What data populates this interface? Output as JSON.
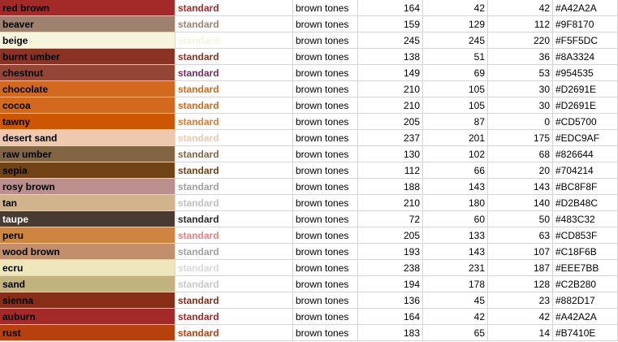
{
  "rows": [
    {
      "name": "red brown",
      "label": "standard",
      "group": "brown tones",
      "r": "164",
      "g": "42",
      "b": "42",
      "hex": "#A42A2A",
      "color": "#A42A2A",
      "name_text_color": "#000000",
      "label_color": "#A42A2A"
    },
    {
      "name": "beaver",
      "label": "standard",
      "group": "brown tones",
      "r": "159",
      "g": "129",
      "b": "112",
      "hex": "#9F8170",
      "color": "#9F8170",
      "name_text_color": "#000000",
      "label_color": "#9F8170"
    },
    {
      "name": "beige",
      "label": "standard",
      "group": "brown tones",
      "r": "245",
      "g": "245",
      "b": "220",
      "hex": "#F5F5DC",
      "color": "#F5F5DC",
      "name_text_color": "#000000",
      "label_color": "#F5F5DC"
    },
    {
      "name": "burnt umber",
      "label": "standard",
      "group": "brown tones",
      "r": "138",
      "g": "51",
      "b": "36",
      "hex": "#8A3324",
      "color": "#8A3324",
      "name_text_color": "#000000",
      "label_color": "#8A3324"
    },
    {
      "name": "chestnut",
      "label": "standard",
      "group": "brown tones",
      "r": "149",
      "g": "69",
      "b": "53",
      "hex": "#954535",
      "color": "#954535",
      "name_text_color": "#000000",
      "label_color": "#7A2E5A"
    },
    {
      "name": "chocolate",
      "label": "standard",
      "group": "brown tones",
      "r": "210",
      "g": "105",
      "b": "30",
      "hex": "#D2691E",
      "color": "#D2691E",
      "name_text_color": "#000000",
      "label_color": "#D2691E"
    },
    {
      "name": "cocoa",
      "label": "standard",
      "group": "brown tones",
      "r": "210",
      "g": "105",
      "b": "30",
      "hex": "#D2691E",
      "color": "#D2691E",
      "name_text_color": "#000000",
      "label_color": "#D2691E"
    },
    {
      "name": "tawny",
      "label": "standard",
      "group": "brown tones",
      "r": "205",
      "g": "87",
      "b": "0",
      "hex": "#CD5700",
      "color": "#CD5700",
      "name_text_color": "#000000",
      "label_color": "#E07A30"
    },
    {
      "name": "desert sand",
      "label": "standard",
      "group": "brown tones",
      "r": "237",
      "g": "201",
      "b": "175",
      "hex": "#EDC9AF",
      "color": "#EDC9AF",
      "name_text_color": "#000000",
      "label_color": "#EDC9AF"
    },
    {
      "name": "raw umber",
      "label": "standard",
      "group": "brown tones",
      "r": "130",
      "g": "102",
      "b": "68",
      "hex": "#826644",
      "color": "#826644",
      "name_text_color": "#000000",
      "label_color": "#826644"
    },
    {
      "name": "sepia",
      "label": "standard",
      "group": "brown tones",
      "r": "112",
      "g": "66",
      "b": "20",
      "hex": "#704214",
      "color": "#704214",
      "name_text_color": "#000000",
      "label_color": "#704214"
    },
    {
      "name": "rosy brown",
      "label": "standard",
      "group": "brown tones",
      "r": "188",
      "g": "143",
      "b": "143",
      "hex": "#BC8F8F",
      "color": "#BC8F8F",
      "name_text_color": "#000000",
      "label_color": "#A0A0A0"
    },
    {
      "name": "tan",
      "label": "standard",
      "group": "brown tones",
      "r": "210",
      "g": "180",
      "b": "140",
      "hex": "#D2B48C",
      "color": "#D2B48C",
      "name_text_color": "#000000",
      "label_color": "#C0C0C0"
    },
    {
      "name": "taupe",
      "label": "standard",
      "group": "brown tones",
      "r": "72",
      "g": "60",
      "b": "50",
      "hex": "#483C32",
      "color": "#483C32",
      "name_text_color": "#ffffff",
      "label_color": "#2b2b2b"
    },
    {
      "name": "peru",
      "label": "standard",
      "group": "brown tones",
      "r": "205",
      "g": "133",
      "b": "63",
      "hex": "#CD853F",
      "color": "#CD853F",
      "name_text_color": "#000000",
      "label_color": "#F08080"
    },
    {
      "name": "wood brown",
      "label": "standard",
      "group": "brown tones",
      "r": "193",
      "g": "143",
      "b": "107",
      "hex": "#C18F6B",
      "color": "#C18F6B",
      "name_text_color": "#000000",
      "label_color": "#A0A0A0"
    },
    {
      "name": "ecru",
      "label": "standard",
      "group": "brown tones",
      "r": "238",
      "g": "231",
      "b": "187",
      "hex": "#EEE7BB",
      "color": "#EEE7BB",
      "name_text_color": "#000000",
      "label_color": "#D8D8D8"
    },
    {
      "name": "sand",
      "label": "standard",
      "group": "brown tones",
      "r": "194",
      "g": "178",
      "b": "128",
      "hex": "#C2B280",
      "color": "#C2B280",
      "name_text_color": "#000000",
      "label_color": "#C8C8C8"
    },
    {
      "name": "sienna",
      "label": "standard",
      "group": "brown tones",
      "r": "136",
      "g": "45",
      "b": "23",
      "hex": "#882D17",
      "color": "#882D17",
      "name_text_color": "#000000",
      "label_color": "#882D17"
    },
    {
      "name": "auburn",
      "label": "standard",
      "group": "brown tones",
      "r": "164",
      "g": "42",
      "b": "42",
      "hex": "#A42A2A",
      "color": "#A42A2A",
      "name_text_color": "#000000",
      "label_color": "#A42A2A"
    },
    {
      "name": "rust",
      "label": "standard",
      "group": "brown tones",
      "r": "183",
      "g": "65",
      "b": "14",
      "hex": "#B7410E",
      "color": "#B7410E",
      "name_text_color": "#000000",
      "label_color": "#B7410E"
    }
  ]
}
